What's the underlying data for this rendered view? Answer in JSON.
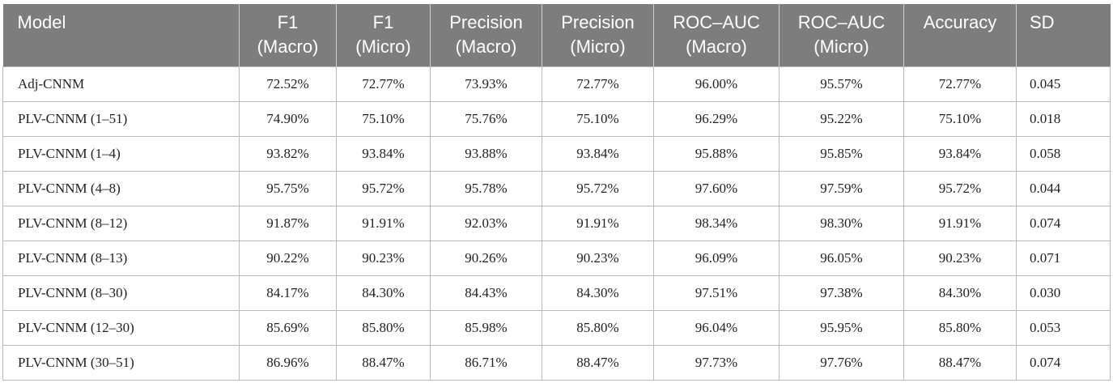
{
  "headers": [
    {
      "line1": "Model",
      "line2": ""
    },
    {
      "line1": "F1",
      "line2": "(Macro)"
    },
    {
      "line1": "F1",
      "line2": "(Micro)"
    },
    {
      "line1": "Precision",
      "line2": "(Macro)"
    },
    {
      "line1": "Precision",
      "line2": "(Micro)"
    },
    {
      "line1": "ROC–AUC",
      "line2": "(Macro)"
    },
    {
      "line1": "ROC–AUC",
      "line2": "(Micro)"
    },
    {
      "line1": "Accuracy",
      "line2": ""
    },
    {
      "line1": "SD",
      "line2": ""
    }
  ],
  "rows": [
    [
      "Adj-CNNM",
      "72.52%",
      "72.77%",
      "73.93%",
      "72.77%",
      "96.00%",
      "95.57%",
      "72.77%",
      "0.045"
    ],
    [
      "PLV-CNNM (1–51)",
      "74.90%",
      "75.10%",
      "75.76%",
      "75.10%",
      "96.29%",
      "95.22%",
      "75.10%",
      "0.018"
    ],
    [
      "PLV-CNNM (1–4)",
      "93.82%",
      "93.84%",
      "93.88%",
      "93.84%",
      "95.88%",
      "95.85%",
      "93.84%",
      "0.058"
    ],
    [
      "PLV-CNNM (4–8)",
      "95.75%",
      "95.72%",
      "95.78%",
      "95.72%",
      "97.60%",
      "97.59%",
      "95.72%",
      "0.044"
    ],
    [
      "PLV-CNNM (8–12)",
      "91.87%",
      "91.91%",
      "92.03%",
      "91.91%",
      "98.34%",
      "98.30%",
      "91.91%",
      "0.074"
    ],
    [
      "PLV-CNNM (8–13)",
      "90.22%",
      "90.23%",
      "90.26%",
      "90.23%",
      "96.09%",
      "96.05%",
      "90.23%",
      "0.071"
    ],
    [
      "PLV-CNNM (8–30)",
      "84.17%",
      "84.30%",
      "84.43%",
      "84.30%",
      "97.51%",
      "97.38%",
      "84.30%",
      "0.030"
    ],
    [
      "PLV-CNNM (12–30)",
      "85.69%",
      "85.80%",
      "85.98%",
      "85.80%",
      "96.04%",
      "95.95%",
      "85.80%",
      "0.053"
    ],
    [
      "PLV-CNNM (30–51)",
      "86.96%",
      "88.47%",
      "86.71%",
      "88.47%",
      "97.73%",
      "97.76%",
      "88.47%",
      "0.074"
    ]
  ]
}
